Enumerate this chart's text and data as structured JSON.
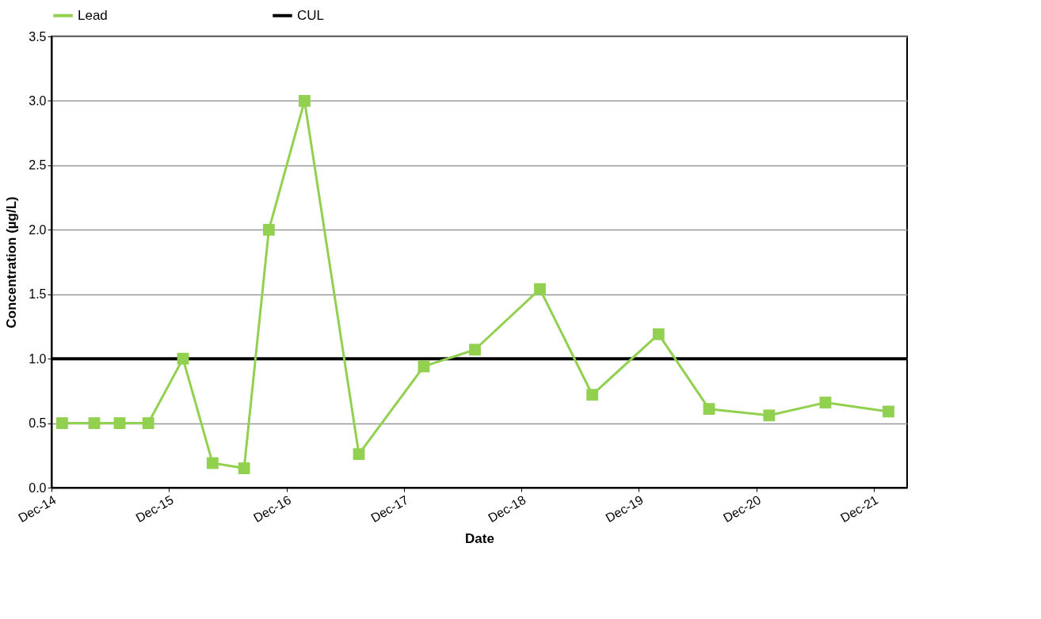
{
  "chart_data": {
    "type": "line",
    "xlabel": "Date",
    "ylabel": "Concentration (µg/L)",
    "x": [
      "2015-01-03",
      "2015-04-13",
      "2015-07-01",
      "2015-09-28",
      "2016-01-14",
      "2016-04-15",
      "2016-07-22",
      "2016-10-07",
      "2017-01-26",
      "2017-07-14",
      "2018-02-01",
      "2018-07-10",
      "2019-01-28",
      "2019-07-10",
      "2020-02-01",
      "2020-07-07",
      "2021-01-10",
      "2021-07-04",
      "2022-01-16"
    ],
    "series": [
      {
        "name": "Lead",
        "color": "#92d050",
        "values": [
          0.5,
          0.5,
          0.5,
          0.5,
          1.0,
          0.19,
          0.15,
          2.0,
          3.0,
          0.26,
          0.94,
          1.07,
          1.54,
          0.72,
          1.19,
          0.61,
          0.56,
          0.66,
          0.59
        ]
      }
    ],
    "ref_lines": [
      {
        "axis": "y",
        "value": 1.0,
        "label": "CUL",
        "color": "#000000",
        "line_style": "solid"
      }
    ],
    "xlim": [
      "2014-12-01",
      "2022-03-15"
    ],
    "xticks": [
      {
        "value": "2014-12-01",
        "label": "Dec-14"
      },
      {
        "value": "2015-12-01",
        "label": "Dec-15"
      },
      {
        "value": "2016-12-01",
        "label": "Dec-16"
      },
      {
        "value": "2017-12-01",
        "label": "Dec-17"
      },
      {
        "value": "2018-12-01",
        "label": "Dec-18"
      },
      {
        "value": "2019-12-01",
        "label": "Dec-19"
      },
      {
        "value": "2020-12-01",
        "label": "Dec-20"
      },
      {
        "value": "2021-12-01",
        "label": "Dec-21"
      }
    ],
    "ylim": [
      0,
      3.5
    ],
    "yticks": [
      {
        "value": 0,
        "label": "0.0"
      },
      {
        "value": 0.5,
        "label": "0.5"
      },
      {
        "value": 1,
        "label": "1.0"
      },
      {
        "value": 1.5,
        "label": "1.5"
      },
      {
        "value": 2,
        "label": "2.0"
      },
      {
        "value": 2.5,
        "label": "2.5"
      },
      {
        "value": 3,
        "label": "3.0"
      },
      {
        "value": 3.5,
        "label": "3.5"
      }
    ],
    "grid": "y",
    "legend": "top",
    "marker": "square",
    "line_style": "solid"
  }
}
